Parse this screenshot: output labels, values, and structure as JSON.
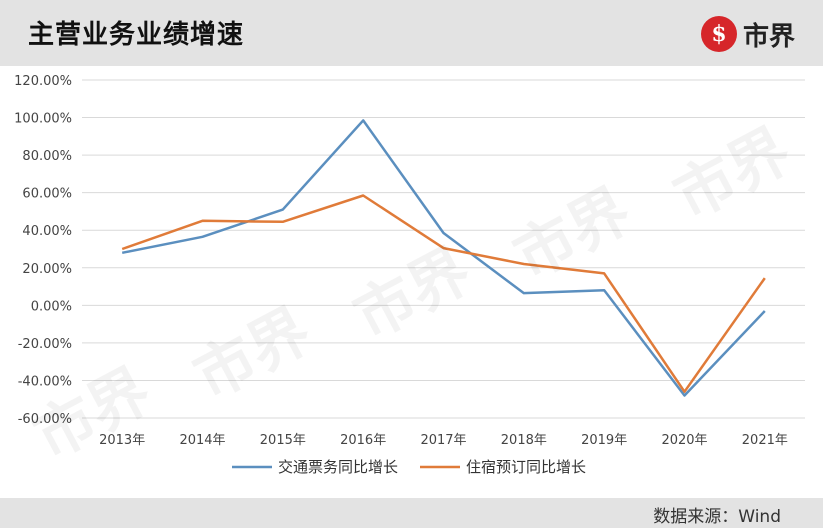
{
  "header": {
    "title": "主营业务业绩增速"
  },
  "logo": {
    "mark": "$",
    "text": "市界"
  },
  "footer": {
    "source": "数据来源：Wind"
  },
  "chart_data": {
    "type": "line",
    "categories": [
      "2013年",
      "2014年",
      "2015年",
      "2016年",
      "2017年",
      "2018年",
      "2019年",
      "2020年",
      "2021年"
    ],
    "series": [
      {
        "name": "交通票务同比增长",
        "color": "#5b8fbf",
        "values": [
          28,
          36.5,
          51,
          98.5,
          38.5,
          6.5,
          8,
          -48,
          -3
        ]
      },
      {
        "name": "住宿预订同比增长",
        "color": "#e07b39",
        "values": [
          30,
          45,
          44.5,
          58.5,
          30.5,
          22,
          17,
          -46,
          14.5
        ]
      }
    ],
    "ylim": [
      -60,
      120
    ],
    "yticks": [
      "120.00%",
      "100.00%",
      "80.00%",
      "60.00%",
      "40.00%",
      "20.00%",
      "0.00%",
      "-20.00%",
      "-40.00%",
      "-60.00%"
    ],
    "grid": true,
    "legend": "bottom"
  }
}
